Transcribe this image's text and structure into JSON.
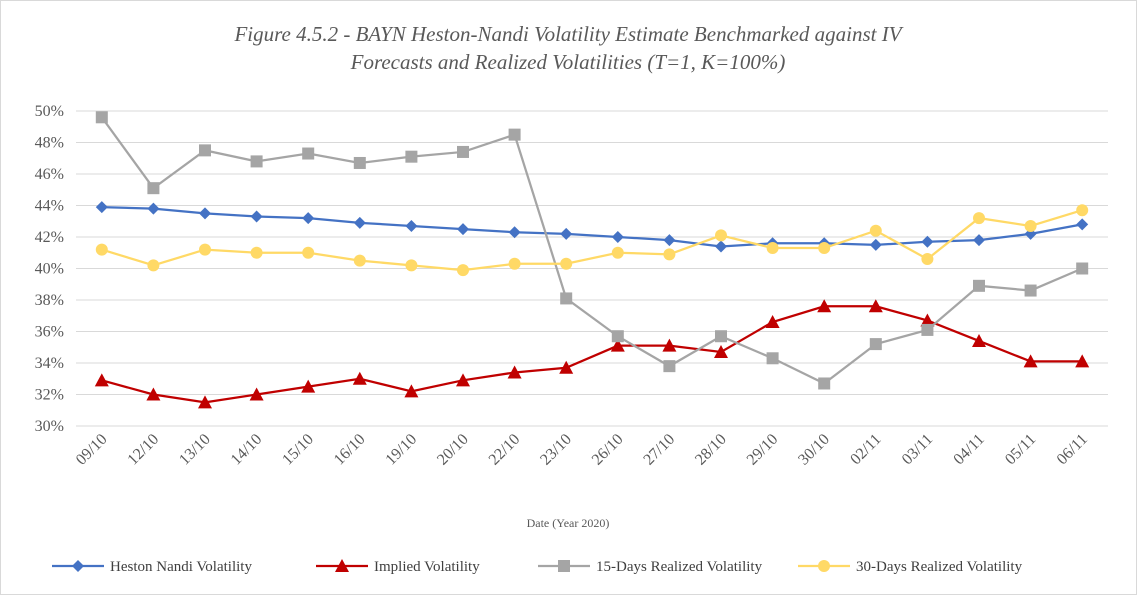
{
  "chart_data": {
    "type": "line",
    "title": [
      "Figure 4.5.2 - BAYN Heston-Nandi Volatility Estimate Benchmarked against IV",
      "Forecasts and Realized Volatilities (T=1, K=100%)"
    ],
    "x_label": "Date (Year 2020)",
    "categories": [
      "09/10",
      "12/10",
      "13/10",
      "14/10",
      "15/10",
      "16/10",
      "19/10",
      "20/10",
      "22/10",
      "23/10",
      "26/10",
      "27/10",
      "28/10",
      "29/10",
      "30/10",
      "02/11",
      "03/11",
      "04/11",
      "05/11",
      "06/11"
    ],
    "series": [
      {
        "name": "Heston Nandi Volatility",
        "color": "#4472c4",
        "marker": "diamond",
        "values": [
          43.9,
          43.8,
          43.5,
          43.3,
          43.2,
          42.9,
          42.7,
          42.5,
          42.3,
          42.2,
          42.0,
          41.8,
          41.4,
          41.6,
          41.6,
          41.5,
          41.7,
          41.8,
          42.2,
          42.8
        ]
      },
      {
        "name": "Implied Volatility",
        "color": "#c00000",
        "marker": "triangle",
        "values": [
          32.9,
          32.0,
          31.5,
          32.0,
          32.5,
          33.0,
          32.2,
          32.9,
          33.4,
          33.7,
          35.1,
          35.1,
          34.7,
          36.6,
          37.6,
          37.6,
          36.7,
          35.4,
          34.1,
          34.1
        ]
      },
      {
        "name": "15-Days Realized Volatility",
        "color": "#a5a5a5",
        "marker": "square",
        "values": [
          49.6,
          45.1,
          47.5,
          46.8,
          47.3,
          46.7,
          47.1,
          47.4,
          48.5,
          38.1,
          35.7,
          33.8,
          35.7,
          34.3,
          32.7,
          35.2,
          36.1,
          38.9,
          38.6,
          40.0
        ]
      },
      {
        "name": "30-Days Realized Volatility",
        "color": "#ffd966",
        "marker": "circle",
        "values": [
          41.2,
          40.2,
          41.2,
          41.0,
          41.0,
          40.5,
          40.2,
          39.9,
          40.3,
          40.3,
          41.0,
          40.9,
          42.1,
          41.3,
          41.3,
          42.4,
          40.6,
          43.2,
          42.7,
          43.7
        ]
      }
    ],
    "ylim": [
      30,
      50
    ],
    "yticks": [
      {
        "value": 30,
        "label": "30%"
      },
      {
        "value": 32,
        "label": "32%"
      },
      {
        "value": 34,
        "label": "34%"
      },
      {
        "value": 36,
        "label": "36%"
      },
      {
        "value": 38,
        "label": "38%"
      },
      {
        "value": 40,
        "label": "40%"
      },
      {
        "value": 42,
        "label": "42%"
      },
      {
        "value": 44,
        "label": "44%"
      },
      {
        "value": 46,
        "label": "46%"
      },
      {
        "value": 48,
        "label": "48%"
      },
      {
        "value": 50,
        "label": "50%"
      }
    ],
    "grid": true,
    "legend": "bottom"
  }
}
